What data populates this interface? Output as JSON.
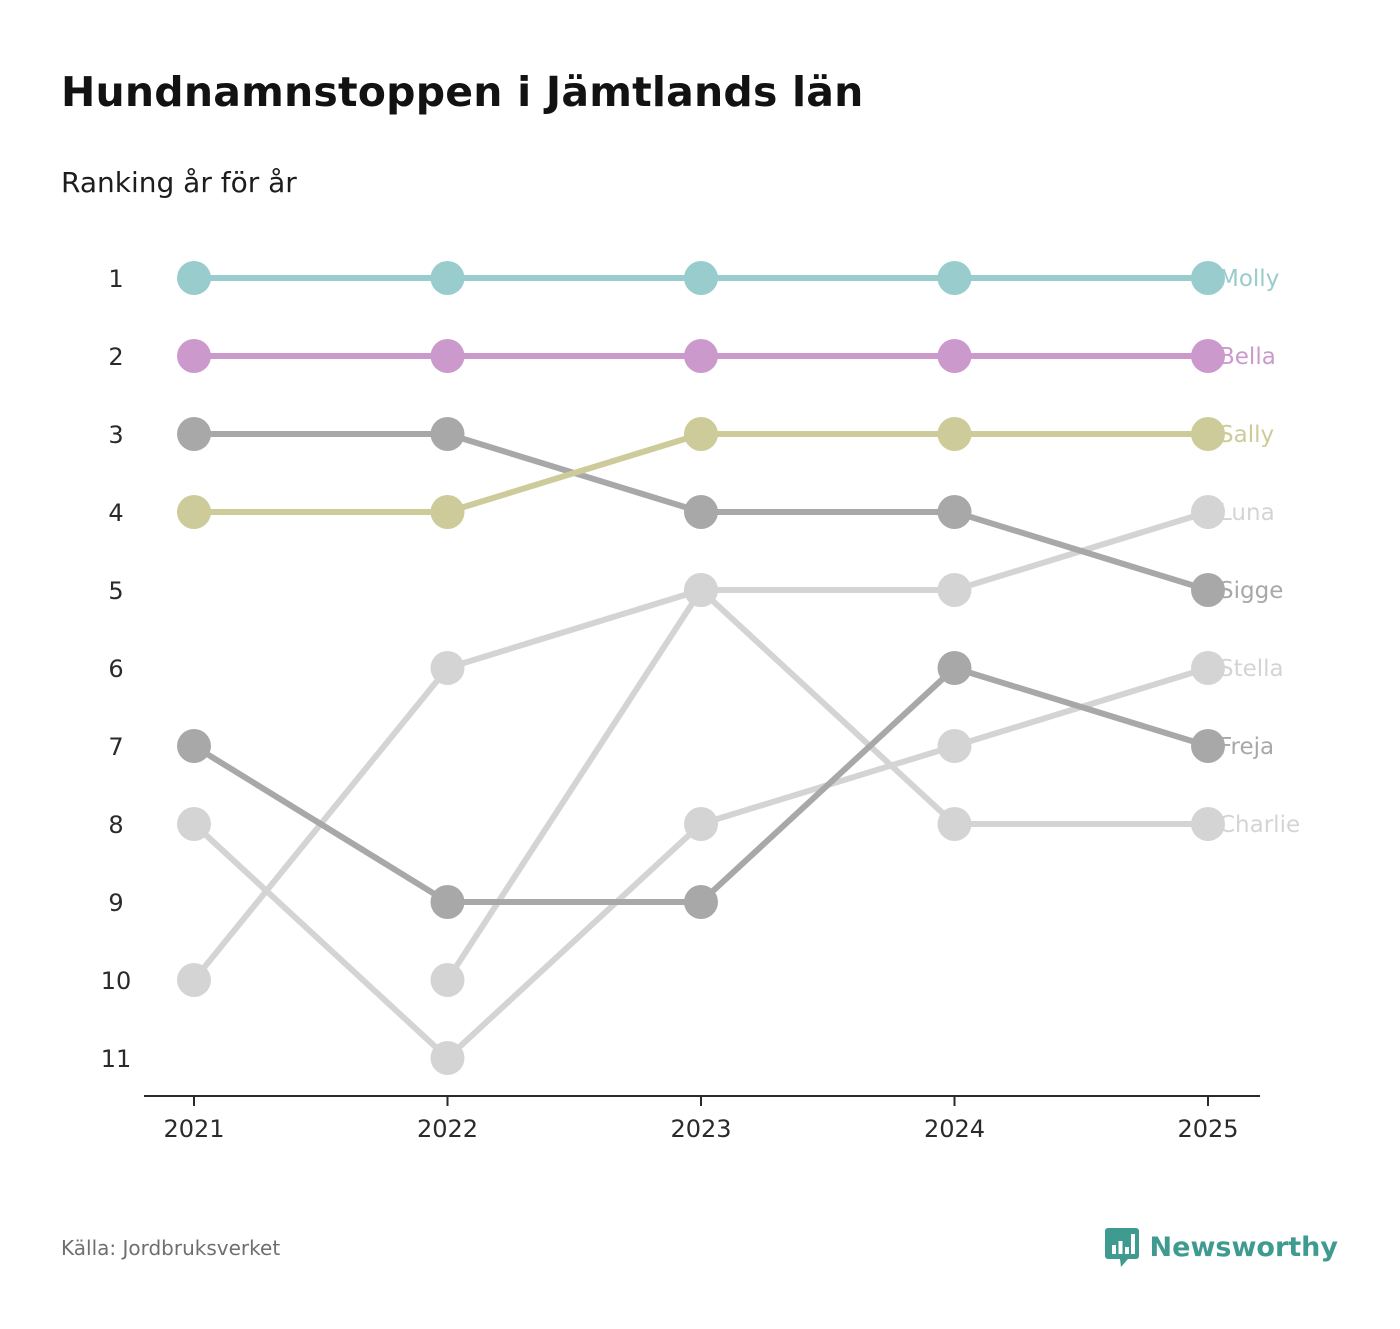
{
  "title": "Hundnamnstoppen i Jämtlands län",
  "subtitle": "Ranking år för år",
  "source": "Källa: Jordbruksverket",
  "brand": {
    "name": "Newsworthy",
    "color": "#3f9a90"
  },
  "chart_data": {
    "type": "line",
    "subtype": "bump",
    "x": [
      "2021",
      "2022",
      "2023",
      "2024",
      "2025"
    ],
    "y_ticks": [
      "1",
      "2",
      "3",
      "4",
      "5",
      "6",
      "7",
      "8",
      "9",
      "10",
      "11"
    ],
    "ylim": [
      1,
      11
    ],
    "y_inverted": true,
    "grid": false,
    "series": [
      {
        "name": "Stella",
        "color": "#d4d4d4",
        "values": [
          8,
          11,
          8,
          7,
          6
        ]
      },
      {
        "name": "Charlie",
        "color": "#d4d4d4",
        "values": [
          10,
          6,
          5,
          8,
          8
        ]
      },
      {
        "name": "Luna",
        "color": "#d4d4d4",
        "values": [
          null,
          10,
          5,
          5,
          4
        ]
      },
      {
        "name": "Freja",
        "color": "#a8a8a8",
        "values": [
          7,
          9,
          9,
          6,
          7
        ]
      },
      {
        "name": "Sigge",
        "color": "#a8a8a8",
        "values": [
          3,
          3,
          4,
          4,
          5
        ]
      },
      {
        "name": "Sally",
        "color": "#cccb99",
        "values": [
          4,
          4,
          3,
          3,
          3
        ]
      },
      {
        "name": "Bella",
        "color": "#cc99cc",
        "values": [
          2,
          2,
          2,
          2,
          2
        ]
      },
      {
        "name": "Molly",
        "color": "#99cccc",
        "values": [
          1,
          1,
          1,
          1,
          1
        ]
      }
    ]
  }
}
